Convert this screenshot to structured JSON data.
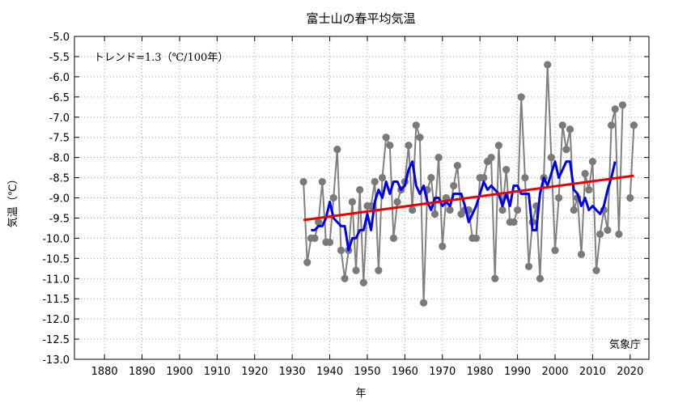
{
  "chart_data": {
    "type": "line",
    "title": "富士山の春平均気温",
    "xlabel": "年",
    "ylabel": "気温（℃）",
    "trend_label": "トレンド=1.3（℃/100年）",
    "credit": "気象庁",
    "xlim": [
      1872,
      2025
    ],
    "ylim": [
      -13.0,
      -5.0
    ],
    "x_ticks": [
      1880,
      1890,
      1900,
      1910,
      1920,
      1930,
      1940,
      1950,
      1960,
      1970,
      1980,
      1990,
      2000,
      2010,
      2020
    ],
    "y_ticks": [
      -5.0,
      -5.5,
      -6.0,
      -6.5,
      -7.0,
      -7.5,
      -8.0,
      -8.5,
      -9.0,
      -9.5,
      -10.0,
      -10.5,
      -11.0,
      -11.5,
      -12.0,
      -12.5,
      -13.0
    ],
    "grid": true,
    "colors": {
      "annual": "#808080",
      "moving_average": "#0000ee",
      "trend": "#ee0000"
    },
    "series": [
      {
        "x": [
          1933,
          1934,
          1935,
          1936,
          1937,
          1938,
          1939,
          1940,
          1941,
          1942,
          1943,
          1944,
          1945,
          1946,
          1947,
          1948,
          1949,
          1950,
          1951,
          1952,
          1953,
          1954,
          1955,
          1956,
          1957,
          1958,
          1959,
          1960,
          1961,
          1962,
          1963,
          1964,
          1965,
          1966,
          1967,
          1968,
          1969,
          1970,
          1971,
          1972,
          1973,
          1974,
          1975,
          1976,
          1977,
          1978,
          1979,
          1980,
          1981,
          1982,
          1983,
          1984,
          1985,
          1986,
          1987,
          1988,
          1989,
          1990,
          1991,
          1992,
          1993,
          1994,
          1995,
          1996,
          1997,
          1998,
          1999,
          2000,
          2001,
          2002,
          2003,
          2004,
          2005,
          2006,
          2007,
          2008,
          2009,
          2010,
          2011,
          2012,
          2013,
          2014,
          2015,
          2016,
          2017,
          2018,
          2019,
          2020,
          2021
        ],
        "values": [
          -8.6,
          -10.6,
          -10.0,
          -10.0,
          -9.6,
          -8.6,
          -10.1,
          -10.1,
          -9.0,
          -7.8,
          -10.3,
          -11.0,
          -10.3,
          -9.1,
          -10.8,
          -8.8,
          -11.1,
          -9.2,
          -9.2,
          -8.6,
          -10.8,
          -8.5,
          -7.5,
          -7.7,
          -10.0,
          -9.1,
          -8.8,
          -8.6,
          -7.7,
          -9.3,
          -7.2,
          -7.5,
          -11.6,
          -8.8,
          -8.5,
          -9.4,
          -8.0,
          -10.2,
          -9.0,
          -9.3,
          -8.7,
          -8.2,
          -9.4,
          -9.3,
          -9.3,
          -10.0,
          -10.0,
          -8.5,
          -8.5,
          -8.1,
          -8.0,
          -11.0,
          -7.7,
          -9.3,
          -8.3,
          -9.6,
          -9.6,
          -9.3,
          -6.5,
          -8.5,
          -10.7,
          -9.6,
          -9.2,
          -11.0,
          -8.5,
          -5.7,
          -8.0,
          -10.3,
          -9.0,
          -7.2,
          -7.8,
          -7.3,
          -9.3,
          -9.0,
          -10.4,
          -8.4,
          -8.8,
          -8.1,
          -10.8,
          -9.9,
          -9.3,
          -9.8,
          -7.2,
          -6.8,
          -9.9,
          -6.7,
          null,
          -9.0,
          -7.2
        ]
      },
      {
        "x": [
          1935,
          1936,
          1937,
          1938,
          1939,
          1940,
          1941,
          1942,
          1943,
          1944,
          1945,
          1946,
          1947,
          1948,
          1949,
          1950,
          1951,
          1952,
          1953,
          1954,
          1955,
          1956,
          1957,
          1958,
          1959,
          1960,
          1961,
          1962,
          1963,
          1964,
          1965,
          1966,
          1967,
          1968,
          1969,
          1970,
          1971,
          1972,
          1973,
          1974,
          1975,
          1976,
          1977,
          1978,
          1979,
          1980,
          1981,
          1982,
          1983,
          1984,
          1985,
          1986,
          1987,
          1988,
          1989,
          1990,
          1991,
          1992,
          1993,
          1994,
          1995,
          1996,
          1997,
          1998,
          1999,
          2000,
          2001,
          2002,
          2003,
          2004,
          2005,
          2006,
          2007,
          2008,
          2009,
          2010,
          2011,
          2012,
          2013,
          2014,
          2015,
          2016
        ],
        "values": [
          -9.8,
          -9.8,
          -9.7,
          -9.7,
          -9.5,
          -9.1,
          -9.5,
          -9.6,
          -9.7,
          -9.7,
          -10.3,
          -10.0,
          -10.0,
          -9.8,
          -9.8,
          -9.4,
          -9.8,
          -9.1,
          -8.8,
          -9.0,
          -8.6,
          -8.9,
          -8.6,
          -8.6,
          -8.8,
          -8.7,
          -8.3,
          -8.1,
          -8.7,
          -8.9,
          -8.7,
          -9.1,
          -9.3,
          -9.0,
          -9.0,
          -9.2,
          -9.1,
          -9.2,
          -8.9,
          -8.9,
          -8.9,
          -9.2,
          -9.6,
          -9.4,
          -9.2,
          -8.9,
          -8.6,
          -8.8,
          -8.7,
          -8.8,
          -8.9,
          -9.2,
          -8.9,
          -9.2,
          -8.7,
          -8.7,
          -8.9,
          -8.9,
          -8.9,
          -9.8,
          -9.8,
          -8.9,
          -8.5,
          -8.7,
          -8.4,
          -8.1,
          -8.5,
          -8.3,
          -8.1,
          -8.1,
          -8.8,
          -8.9,
          -9.2,
          -9.0,
          -9.3,
          -9.2,
          -9.3,
          -9.4,
          -9.2,
          -8.8,
          -8.5,
          -8.1
        ]
      },
      {
        "x": [
          1933,
          2021
        ],
        "values": [
          -9.55,
          -8.45
        ]
      }
    ]
  }
}
